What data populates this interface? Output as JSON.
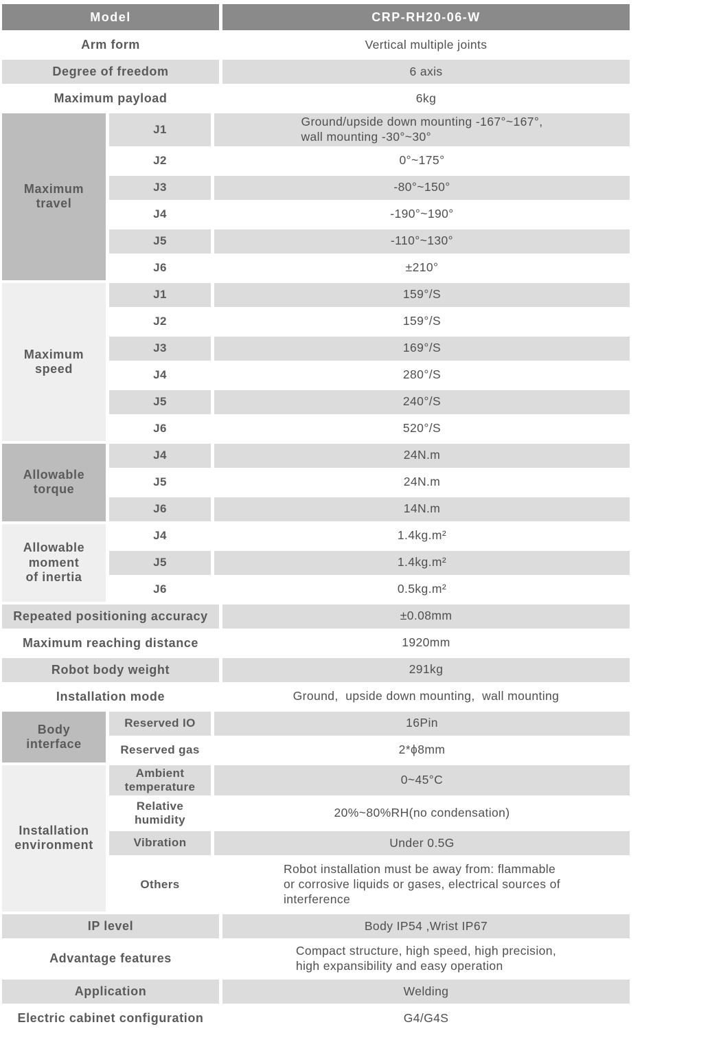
{
  "colors": {
    "header-bg": "#8a8a8a",
    "header-text": "#ffffff",
    "zebra": "#dcdcdc",
    "group-dark": "#bcbcbc",
    "group-light": "#efefef",
    "label-text": "#5a5a5a",
    "value-text": "#4f4f4f"
  },
  "header": {
    "label": "Model",
    "value": "CRP-RH20-06-W"
  },
  "arm_form": {
    "label": "Arm form",
    "value": "Vertical multiple joints"
  },
  "degree_of_freedom": {
    "label": "Degree of freedom",
    "value": "6 axis"
  },
  "maximum_payload": {
    "label": "Maximum payload",
    "value": "6kg"
  },
  "maximum_travel": {
    "label": "Maximum\ntravel",
    "rows": [
      {
        "sub": "J1",
        "value": "Ground/upside down mounting -167°~167°,\nwall mounting -30°~30°"
      },
      {
        "sub": "J2",
        "value": "0°~175°"
      },
      {
        "sub": "J3",
        "value": "-80°~150°"
      },
      {
        "sub": "J4",
        "value": "-190°~190°"
      },
      {
        "sub": "J5",
        "value": "-110°~130°"
      },
      {
        "sub": "J6",
        "value": "±210°"
      }
    ]
  },
  "maximum_speed": {
    "label": "Maximum\nspeed",
    "rows": [
      {
        "sub": "J1",
        "value": "159°/S"
      },
      {
        "sub": "J2",
        "value": "159°/S"
      },
      {
        "sub": "J3",
        "value": "169°/S"
      },
      {
        "sub": "J4",
        "value": "280°/S"
      },
      {
        "sub": "J5",
        "value": "240°/S"
      },
      {
        "sub": "J6",
        "value": "520°/S"
      }
    ]
  },
  "allowable_torque": {
    "label": "Allowable\ntorque",
    "rows": [
      {
        "sub": "J4",
        "value": "24N.m"
      },
      {
        "sub": "J5",
        "value": "24N.m"
      },
      {
        "sub": "J6",
        "value": "14N.m"
      }
    ]
  },
  "allowable_moment_of_inertia": {
    "label": "Allowable\nmoment\nof inertia",
    "rows": [
      {
        "sub": "J4",
        "value": "1.4kg.m²"
      },
      {
        "sub": "J5",
        "value": "1.4kg.m²"
      },
      {
        "sub": "J6",
        "value": "0.5kg.m²"
      }
    ]
  },
  "repeated_positioning_accuracy": {
    "label": "Repeated positioning accuracy",
    "value": "±0.08mm"
  },
  "maximum_reaching_distance": {
    "label": "Maximum reaching distance",
    "value": "1920mm"
  },
  "robot_body_weight": {
    "label": "Robot body weight",
    "value": "291kg"
  },
  "installation_mode": {
    "label": "Installation mode",
    "value": "Ground,  upside down mounting,  wall mounting"
  },
  "body_interface": {
    "label": "Body\ninterface",
    "rows": [
      {
        "sub": "Reserved IO",
        "value": "16Pin"
      },
      {
        "sub": "Reserved gas",
        "value": "2*ϕ8mm"
      }
    ]
  },
  "installation_environment": {
    "label": "Installation\nenvironment",
    "rows": [
      {
        "sub": "Ambient\ntemperature",
        "value": "0~45°C"
      },
      {
        "sub": "Relative\nhumidity",
        "value": "20%~80%RH(no condensation)"
      },
      {
        "sub": "Vibration",
        "value": "Under 0.5G"
      },
      {
        "sub": "Others",
        "value": "Robot installation must be away from: flammable\nor corrosive liquids or gases, electrical sources of\ninterference"
      }
    ]
  },
  "ip_level": {
    "label": "IP level",
    "value": "Body IP54 ,Wrist IP67"
  },
  "advantage_features": {
    "label": "Advantage features",
    "value": "Compact structure, high speed, high precision,\nhigh expansibility and easy operation"
  },
  "application": {
    "label": "Application",
    "value": "Welding"
  },
  "electric_cabinet_configuration": {
    "label": "Electric cabinet configuration",
    "value": "G4/G4S"
  }
}
